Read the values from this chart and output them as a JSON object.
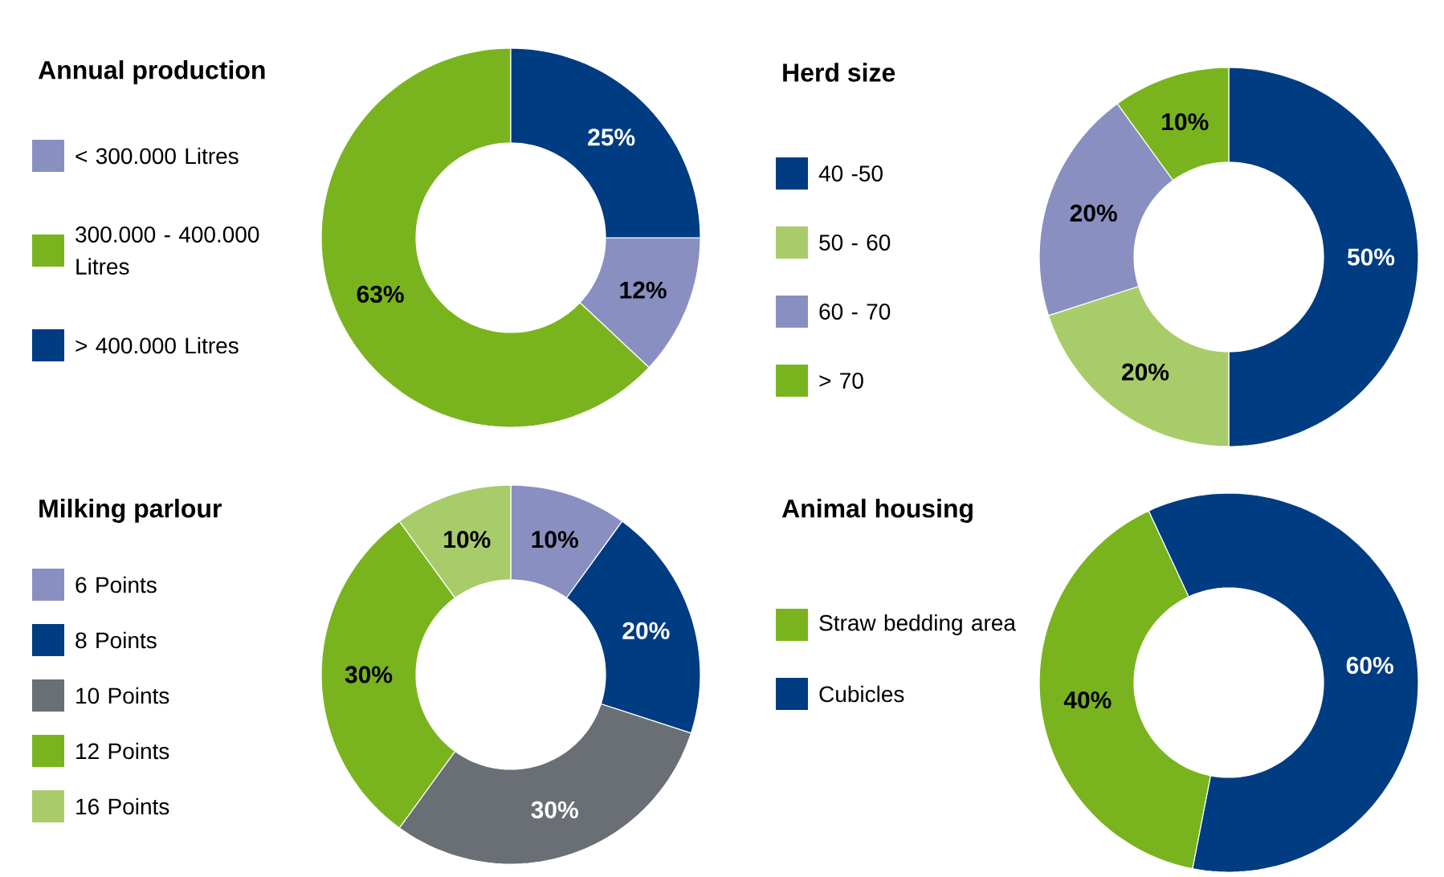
{
  "chart_data": [
    {
      "type": "donut",
      "title": "Annual production",
      "categories": [
        "< 300.000 Litres",
        "300.000 - 400.000 Litres",
        "> 400.000 Litres"
      ],
      "values": [
        12,
        63,
        25
      ],
      "colors": [
        "#8a8fc2",
        "#79b41e",
        "#003c82"
      ],
      "value_labels": [
        "12%",
        "63%",
        "25%"
      ],
      "legend": "left"
    },
    {
      "type": "donut",
      "title": "Herd size",
      "categories": [
        "40 -50",
        "50 - 60",
        "60 - 70",
        "> 70"
      ],
      "values": [
        50,
        20,
        20,
        10
      ],
      "colors": [
        "#003c82",
        "#a9cc6a",
        "#8a8fc2",
        "#79b41e"
      ],
      "value_labels": [
        "50%",
        "20%",
        "20%",
        "10%"
      ],
      "legend": "left"
    },
    {
      "type": "donut",
      "title": "Milking parlour",
      "categories": [
        "6 Points",
        "8 Points",
        "10 Points",
        "12 Points",
        "16 Points"
      ],
      "values": [
        10,
        20,
        30,
        30,
        10
      ],
      "colors": [
        "#8a8fc2",
        "#003c82",
        "#6a6f75",
        "#79b41e",
        "#a9cc6a"
      ],
      "value_labels": [
        "10%",
        "20%",
        "30%",
        "30%",
        "10%"
      ],
      "legend": "left"
    },
    {
      "type": "donut",
      "title": "Animal housing",
      "categories": [
        "Straw bedding area",
        "Cubicles"
      ],
      "values": [
        40,
        60
      ],
      "colors": [
        "#79b41e",
        "#003c82"
      ],
      "value_labels": [
        "40%",
        "60%"
      ],
      "legend": "left"
    }
  ]
}
